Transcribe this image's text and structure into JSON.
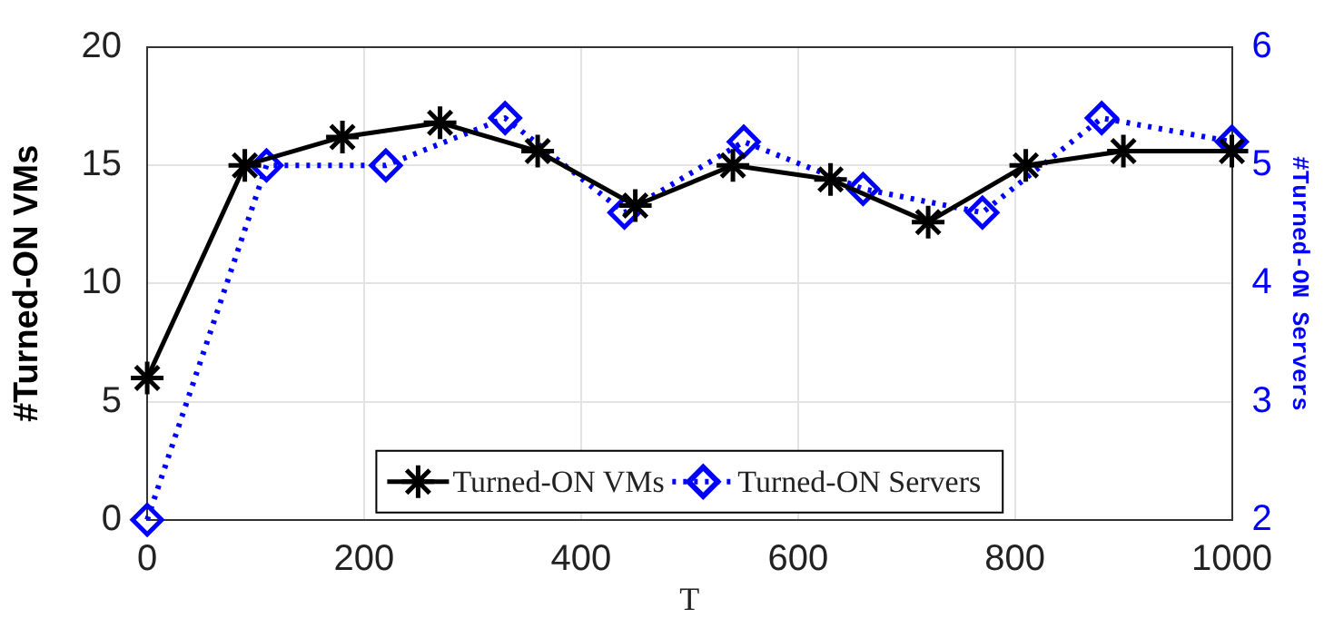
{
  "chart_data": {
    "type": "line",
    "xlabel": "T",
    "ylabel": "#Turned-ON VMs",
    "y2label": "#Turned-ON Servers",
    "xlim": [
      0,
      1000
    ],
    "xticks": [
      0,
      200,
      400,
      600,
      800,
      1000
    ],
    "ylim": [
      0,
      20
    ],
    "yticks": [
      0,
      5,
      10,
      15,
      20
    ],
    "y2lim": [
      2,
      6
    ],
    "y2ticks": [
      2,
      3,
      4,
      5,
      6
    ],
    "grid": true,
    "legend": "bottom",
    "series": [
      {
        "name": "Turned-ON VMs",
        "color": "#000000",
        "marker": "cross",
        "line_style": "solid",
        "x": [
          0,
          90,
          180,
          270,
          360,
          450,
          540,
          630,
          720,
          810,
          900,
          1000
        ],
        "values": [
          6,
          15,
          16.2,
          16.8,
          15.6,
          13.3,
          15,
          14.4,
          12.6,
          15,
          15.6,
          15.6
        ]
      },
      {
        "name": "Turned-ON Servers",
        "color": "#0000ff",
        "marker": "diamond",
        "line_style": "dotted",
        "axis": "y2",
        "x": [
          0,
          110,
          220,
          330,
          440,
          550,
          660,
          770,
          880,
          1000
        ],
        "values": [
          2,
          5,
          5,
          5.4,
          4.6,
          5.2,
          4.8,
          4.6,
          5.4,
          5.2
        ]
      }
    ]
  }
}
